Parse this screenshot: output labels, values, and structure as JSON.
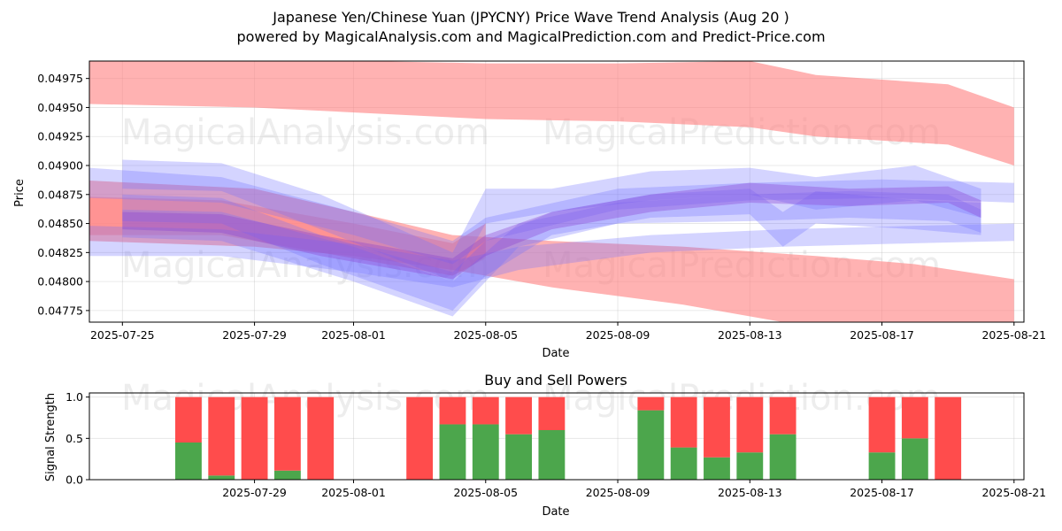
{
  "title_line1": "Japanese Yen/Chinese Yuan (JPYCNY) Price Wave Trend Analysis (Aug 20 )",
  "title_line2": "powered by MagicalAnalysis.com and MagicalPrediction.com and Predict-Price.com",
  "watermarks": [
    "MagicalAnalysis.com",
    "MagicalPrediction.com"
  ],
  "colors": {
    "red_band": "#ff7f7f",
    "blue_band": "#6f6fff",
    "buy": "#4ca64c",
    "sell": "#ff4c4c"
  },
  "chart_data": [
    {
      "type": "area",
      "title": "",
      "xlabel": "Date",
      "ylabel": "Price",
      "grid": true,
      "x_day_range": [
        -1.0,
        27.3
      ],
      "x_ticks": [
        {
          "day": 0,
          "label": "2025-07-25"
        },
        {
          "day": 4,
          "label": "2025-07-29"
        },
        {
          "day": 7,
          "label": "2025-08-01"
        },
        {
          "day": 11,
          "label": "2025-08-05"
        },
        {
          "day": 15,
          "label": "2025-08-09"
        },
        {
          "day": 19,
          "label": "2025-08-13"
        },
        {
          "day": 23,
          "label": "2025-08-17"
        },
        {
          "day": 27,
          "label": "2025-08-21"
        }
      ],
      "ylim": [
        0.04765,
        0.0499
      ],
      "y_ticks": [
        "0.04775",
        "0.04800",
        "0.04825",
        "0.04850",
        "0.04875",
        "0.04900",
        "0.04925",
        "0.04950",
        "0.04975"
      ],
      "series": [
        {
          "name": "upper-red-band",
          "color": "red",
          "x": [
            -1,
            4,
            11,
            15,
            19,
            21,
            25,
            27
          ],
          "upper": [
            0.04998,
            0.04992,
            0.04988,
            0.04988,
            0.0499,
            0.04978,
            0.0497,
            0.0495
          ],
          "lower": [
            0.04953,
            0.0495,
            0.0494,
            0.04938,
            0.04933,
            0.04925,
            0.04918,
            0.049
          ]
        },
        {
          "name": "lower-red-band",
          "color": "red",
          "x": [
            -1,
            4,
            7,
            10,
            13,
            17,
            21,
            24,
            27
          ],
          "upper": [
            0.04887,
            0.0488,
            0.0486,
            0.0484,
            0.04835,
            0.0483,
            0.04822,
            0.04815,
            0.04802
          ],
          "lower": [
            0.04835,
            0.0483,
            0.04822,
            0.0481,
            0.04795,
            0.0478,
            0.0476,
            0.04748,
            0.0473
          ]
        },
        {
          "name": "main-red-wave",
          "color": "red",
          "x": [
            -1,
            3,
            7,
            10,
            11
          ],
          "upper": [
            0.04873,
            0.0487,
            0.0485,
            0.04833,
            0.0485
          ],
          "lower": [
            0.0484,
            0.0484,
            0.0482,
            0.04805,
            0.0482
          ]
        },
        {
          "name": "blue-channel-upper",
          "color": "blue",
          "x": [
            -1,
            3,
            7,
            10,
            11,
            15,
            19,
            23,
            27
          ],
          "upper": [
            0.04898,
            0.0489,
            0.0486,
            0.04835,
            0.04855,
            0.0488,
            0.04885,
            0.04888,
            0.04885
          ],
          "lower": [
            0.04872,
            0.04868,
            0.0484,
            0.04815,
            0.04835,
            0.04862,
            0.0487,
            0.04872,
            0.04868
          ]
        },
        {
          "name": "blue-channel-lower",
          "color": "blue",
          "x": [
            -1,
            3,
            7,
            10,
            12,
            16,
            20,
            24,
            27
          ],
          "upper": [
            0.04848,
            0.04845,
            0.04832,
            0.04818,
            0.0483,
            0.0484,
            0.04845,
            0.04848,
            0.0485
          ],
          "lower": [
            0.04822,
            0.04822,
            0.04808,
            0.04795,
            0.0481,
            0.04825,
            0.0483,
            0.04833,
            0.04835
          ]
        },
        {
          "name": "blue-wave-1",
          "color": "blue",
          "x": [
            0,
            3,
            6,
            10,
            11,
            13,
            16,
            19,
            21,
            24,
            26
          ],
          "upper": [
            0.04905,
            0.04902,
            0.04875,
            0.04825,
            0.0488,
            0.0488,
            0.04895,
            0.04898,
            0.0489,
            0.049,
            0.0488
          ],
          "lower": [
            0.0488,
            0.04878,
            0.04845,
            0.048,
            0.0485,
            0.0486,
            0.0487,
            0.04875,
            0.04862,
            0.0487,
            0.04855
          ]
        },
        {
          "name": "blue-wave-2",
          "color": "blue",
          "x": [
            0,
            3,
            6,
            10,
            11,
            13,
            16,
            19,
            20,
            21,
            24,
            26
          ],
          "upper": [
            0.04875,
            0.04872,
            0.0484,
            0.04808,
            0.04835,
            0.0486,
            0.04875,
            0.0488,
            0.0486,
            0.04878,
            0.0487,
            0.04868
          ],
          "lower": [
            0.04852,
            0.0485,
            0.04815,
            0.04775,
            0.04805,
            0.0484,
            0.04855,
            0.04858,
            0.0483,
            0.0485,
            0.04845,
            0.0484
          ]
        },
        {
          "name": "blue-wave-3",
          "color": "blue",
          "x": [
            0,
            3,
            7,
            10,
            11,
            12,
            15,
            19,
            22,
            25,
            26
          ],
          "upper": [
            0.04862,
            0.0486,
            0.0483,
            0.048,
            0.04825,
            0.0485,
            0.04868,
            0.04875,
            0.04878,
            0.04875,
            0.04862
          ],
          "lower": [
            0.04838,
            0.04835,
            0.048,
            0.0477,
            0.048,
            0.0483,
            0.0485,
            0.04852,
            0.04855,
            0.04852,
            0.04842
          ]
        },
        {
          "name": "purple-wave",
          "color": "purple",
          "x": [
            0,
            3,
            6,
            10,
            11,
            13,
            16,
            19,
            22,
            25,
            26
          ],
          "upper": [
            0.0486,
            0.04858,
            0.0484,
            0.0482,
            0.0484,
            0.0486,
            0.04875,
            0.04885,
            0.0488,
            0.04882,
            0.0487
          ],
          "lower": [
            0.04845,
            0.04842,
            0.04822,
            0.04802,
            0.04822,
            0.04845,
            0.0486,
            0.04868,
            0.04865,
            0.04868,
            0.04855
          ]
        }
      ]
    },
    {
      "type": "bar",
      "title": "Buy and Sell Powers",
      "xlabel": "Date",
      "ylabel": "Signal Strength",
      "grid": true,
      "ylim": [
        0,
        1.05
      ],
      "y_ticks": [
        "0.0",
        "0.5",
        "1.0"
      ],
      "x_day_range": [
        -1.0,
        27.3
      ],
      "x_ticks": [
        {
          "day": 4,
          "label": "2025-07-29"
        },
        {
          "day": 7,
          "label": "2025-08-01"
        },
        {
          "day": 11,
          "label": "2025-08-05"
        },
        {
          "day": 15,
          "label": "2025-08-09"
        },
        {
          "day": 19,
          "label": "2025-08-13"
        },
        {
          "day": 23,
          "label": "2025-08-17"
        },
        {
          "day": 27,
          "label": "2025-08-21"
        }
      ],
      "categories": [
        "2025-07-27",
        "2025-07-28",
        "2025-07-29",
        "2025-07-30",
        "2025-07-31",
        "2025-08-03",
        "2025-08-04",
        "2025-08-05",
        "2025-08-06",
        "2025-08-07",
        "2025-08-10",
        "2025-08-11",
        "2025-08-12",
        "2025-08-13",
        "2025-08-14",
        "2025-08-17",
        "2025-08-18",
        "2025-08-19"
      ],
      "days": [
        2,
        3,
        4,
        5,
        6,
        9,
        10,
        11,
        12,
        13,
        16,
        17,
        18,
        19,
        20,
        23,
        24,
        25
      ],
      "series": [
        {
          "name": "Buy",
          "color": "green",
          "values": [
            0.45,
            0.05,
            0.0,
            0.11,
            0.0,
            0.0,
            0.67,
            0.67,
            0.55,
            0.6,
            0.84,
            0.39,
            0.27,
            0.33,
            0.55,
            0.33,
            0.5,
            0.0
          ]
        },
        {
          "name": "Sell",
          "color": "red",
          "values": [
            0.55,
            0.95,
            1.0,
            0.89,
            1.0,
            1.0,
            0.33,
            0.33,
            0.45,
            0.4,
            0.16,
            0.61,
            0.73,
            0.67,
            0.45,
            0.67,
            0.5,
            1.0
          ]
        }
      ]
    }
  ]
}
